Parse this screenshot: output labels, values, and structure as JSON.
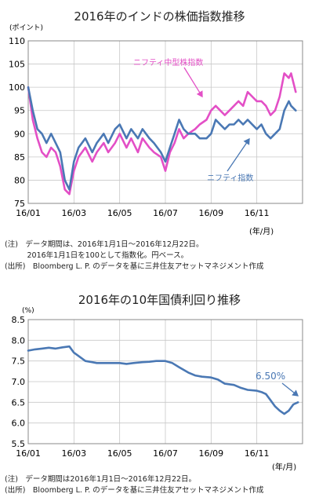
{
  "chart1": {
    "title": "2016年のインドの株価指数推移",
    "unit": "(ポイント)",
    "xunit": "(年/月)",
    "note1": "(注)　データ期間は、2016年1月1日～2016年12月22日。",
    "note2": "　　　2016年1月1日を100として指数化。円ベース。",
    "source": "(出所)　Bloomberg L. P. のデータを基に三井住友アセットマネジメント作成"
  },
  "chart2": {
    "title": "2016年の10年国債利回り推移",
    "unit": "(%)",
    "xunit": "(年/月)",
    "note1": "(注)　データ期間は2016年1月1日～2016年12月22日。",
    "source": "(出所)　Bloomberg L. P. のデータを基に三井住友アセットマネジメント作成"
  },
  "chart_data": [
    {
      "type": "line",
      "title": "2016年のインドの株価指数推移",
      "ylabel": "(ポイント)",
      "xlabel": "(年/月)",
      "ylim": [
        75,
        110
      ],
      "yticks": [
        75,
        80,
        85,
        90,
        95,
        100,
        105,
        110
      ],
      "xlim": [
        0,
        12
      ],
      "xticks": [
        {
          "x": 0,
          "label": "16/01"
        },
        {
          "x": 2,
          "label": "16/03"
        },
        {
          "x": 4,
          "label": "16/05"
        },
        {
          "x": 6,
          "label": "16/07"
        },
        {
          "x": 8,
          "label": "16/09"
        },
        {
          "x": 10,
          "label": "16/11"
        }
      ],
      "grid": true,
      "series": [
        {
          "name": "ニフティ中型株指数",
          "color": "#e34fc6",
          "x": [
            0,
            0.2,
            0.4,
            0.6,
            0.8,
            1.0,
            1.2,
            1.4,
            1.6,
            1.8,
            2.0,
            2.2,
            2.5,
            2.8,
            3.0,
            3.3,
            3.5,
            3.8,
            4.0,
            4.3,
            4.5,
            4.8,
            5.0,
            5.3,
            5.5,
            5.8,
            6.0,
            6.2,
            6.4,
            6.6,
            6.8,
            7.0,
            7.3,
            7.5,
            7.8,
            8.0,
            8.2,
            8.4,
            8.6,
            8.8,
            9.0,
            9.2,
            9.4,
            9.6,
            9.8,
            10.0,
            10.2,
            10.4,
            10.6,
            10.8,
            11.0,
            11.2,
            11.4,
            11.5,
            11.7
          ],
          "y": [
            100,
            93,
            89,
            86,
            85,
            87,
            86,
            83,
            78,
            77,
            82,
            85,
            87,
            84,
            86,
            88,
            86,
            88,
            90,
            87,
            89,
            86,
            89,
            87,
            86,
            85,
            82,
            86,
            88,
            91,
            89,
            90,
            91,
            92,
            93,
            95,
            96,
            95,
            94,
            95,
            96,
            97,
            96,
            99,
            98,
            97,
            97,
            96,
            94,
            95,
            98,
            103,
            102,
            103,
            99
          ]
        },
        {
          "name": "ニフティ指数",
          "color": "#4a78b4",
          "x": [
            0,
            0.2,
            0.4,
            0.6,
            0.8,
            1.0,
            1.2,
            1.4,
            1.6,
            1.8,
            2.0,
            2.2,
            2.5,
            2.8,
            3.0,
            3.3,
            3.5,
            3.8,
            4.0,
            4.3,
            4.5,
            4.8,
            5.0,
            5.3,
            5.5,
            5.8,
            6.0,
            6.2,
            6.4,
            6.6,
            6.8,
            7.0,
            7.3,
            7.5,
            7.8,
            8.0,
            8.2,
            8.4,
            8.6,
            8.8,
            9.0,
            9.2,
            9.4,
            9.6,
            9.8,
            10.0,
            10.2,
            10.4,
            10.6,
            10.8,
            11.0,
            11.2,
            11.4,
            11.5,
            11.7
          ],
          "y": [
            100,
            95,
            91,
            90,
            88,
            90,
            88,
            86,
            80,
            78,
            84,
            87,
            89,
            86,
            88,
            90,
            88,
            91,
            92,
            89,
            91,
            89,
            91,
            89,
            88,
            86,
            84,
            87,
            90,
            93,
            91,
            90,
            90,
            89,
            89,
            90,
            93,
            92,
            91,
            92,
            92,
            93,
            92,
            93,
            92,
            91,
            92,
            90,
            89,
            90,
            91,
            95,
            97,
            96,
            95
          ]
        }
      ],
      "annotations": [
        "ニフティ中型株指数",
        "ニフティ指数"
      ]
    },
    {
      "type": "line",
      "title": "2016年の10年国債利回り推移",
      "ylabel": "(%)",
      "xlabel": "(年/月)",
      "ylim": [
        5.5,
        8.5
      ],
      "yticks": [
        "5.5",
        "6.0",
        "6.5",
        "7.0",
        "7.5",
        "8.0",
        "8.5"
      ],
      "xlim": [
        0,
        12
      ],
      "xticks": [
        {
          "x": 0,
          "label": "16/01"
        },
        {
          "x": 2,
          "label": "16/03"
        },
        {
          "x": 4,
          "label": "16/05"
        },
        {
          "x": 6,
          "label": "16/07"
        },
        {
          "x": 8,
          "label": "16/09"
        },
        {
          "x": 10,
          "label": "16/11"
        }
      ],
      "grid": true,
      "series": [
        {
          "name": "",
          "color": "#4a78b4",
          "x": [
            0,
            0.3,
            0.6,
            0.9,
            1.2,
            1.5,
            1.8,
            2.0,
            2.2,
            2.5,
            2.8,
            3.0,
            3.3,
            3.6,
            4.0,
            4.3,
            4.6,
            5.0,
            5.3,
            5.6,
            6.0,
            6.3,
            6.6,
            7.0,
            7.3,
            7.6,
            8.0,
            8.3,
            8.6,
            9.0,
            9.3,
            9.6,
            10.0,
            10.2,
            10.4,
            10.6,
            10.8,
            11.0,
            11.2,
            11.4,
            11.6,
            11.8
          ],
          "y": [
            7.75,
            7.78,
            7.8,
            7.82,
            7.8,
            7.83,
            7.85,
            7.7,
            7.62,
            7.5,
            7.47,
            7.45,
            7.45,
            7.45,
            7.45,
            7.43,
            7.45,
            7.47,
            7.48,
            7.5,
            7.5,
            7.45,
            7.35,
            7.22,
            7.15,
            7.12,
            7.1,
            7.05,
            6.95,
            6.92,
            6.85,
            6.8,
            6.78,
            6.75,
            6.7,
            6.55,
            6.4,
            6.3,
            6.22,
            6.3,
            6.45,
            6.5
          ]
        }
      ],
      "annotations": [
        "6.50%"
      ]
    }
  ]
}
